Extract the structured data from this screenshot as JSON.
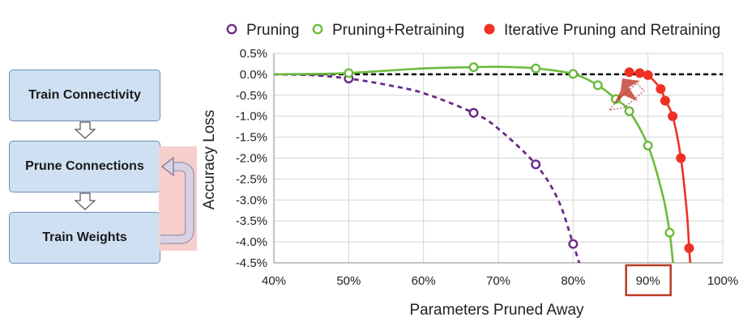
{
  "flowchart": {
    "steps": [
      "Train Connectivity",
      "Prune Connections",
      "Train Weights"
    ]
  },
  "chart_data": {
    "type": "line",
    "title": "",
    "xlabel": "Parameters Pruned Away",
    "ylabel": "Accuracy Loss",
    "xlim": [
      40,
      100
    ],
    "ylim": [
      -4.5,
      0.5
    ],
    "x_ticks": [
      "40%",
      "50%",
      "60%",
      "70%",
      "80%",
      "90%",
      "100%"
    ],
    "y_ticks": [
      "0.5%",
      "0.0%",
      "-0.5%",
      "-1.0%",
      "-1.5%",
      "-2.0%",
      "-2.5%",
      "-3.0%",
      "-3.5%",
      "-4.0%",
      "-4.5%"
    ],
    "highlighted_tick": "90%",
    "grid": true,
    "legend_position": "top",
    "series": [
      {
        "name": "Pruning",
        "color": "#6a2a86",
        "line_style": "dashed",
        "marker": "open-circle",
        "points": [
          [
            50,
            -0.1
          ],
          [
            66.7,
            -0.92
          ],
          [
            75,
            -2.15
          ],
          [
            80,
            -4.05
          ]
        ],
        "curve": [
          [
            40,
            0.0
          ],
          [
            45,
            -0.02
          ],
          [
            50,
            -0.1
          ],
          [
            55,
            -0.25
          ],
          [
            60,
            -0.45
          ],
          [
            66.7,
            -0.92
          ],
          [
            70,
            -1.3
          ],
          [
            75,
            -2.15
          ],
          [
            78,
            -3.0
          ],
          [
            80,
            -4.05
          ],
          [
            81,
            -4.6
          ]
        ]
      },
      {
        "name": "Pruning+Retraining",
        "color": "#6cbb3c",
        "line_style": "solid",
        "marker": "open-circle",
        "points": [
          [
            50,
            0.03
          ],
          [
            66.7,
            0.17
          ],
          [
            75,
            0.14
          ],
          [
            80,
            0.01
          ],
          [
            83.3,
            -0.26
          ],
          [
            85.7,
            -0.59
          ],
          [
            87.5,
            -0.88
          ],
          [
            90,
            -1.7
          ],
          [
            92.9,
            -3.78
          ]
        ],
        "curve": [
          [
            40,
            0.0
          ],
          [
            45,
            0.01
          ],
          [
            50,
            0.03
          ],
          [
            60,
            0.14
          ],
          [
            66.7,
            0.17
          ],
          [
            70,
            0.18
          ],
          [
            75,
            0.14
          ],
          [
            80,
            0.01
          ],
          [
            83.3,
            -0.26
          ],
          [
            85.7,
            -0.59
          ],
          [
            87.5,
            -0.88
          ],
          [
            90,
            -1.7
          ],
          [
            92,
            -2.9
          ],
          [
            92.9,
            -3.78
          ],
          [
            93.4,
            -4.6
          ]
        ]
      },
      {
        "name": "Iterative Pruning and Retraining",
        "color": "#ee3124",
        "line_style": "solid",
        "marker": "filled-circle",
        "points": [
          [
            87.5,
            0.05
          ],
          [
            88.9,
            0.03
          ],
          [
            90,
            -0.02
          ],
          [
            91.7,
            -0.35
          ],
          [
            92.3,
            -0.63
          ],
          [
            93.3,
            -1.0
          ],
          [
            94.4,
            -2.0
          ],
          [
            95.5,
            -4.15
          ]
        ],
        "curve": [
          [
            87.5,
            0.05
          ],
          [
            88.9,
            0.03
          ],
          [
            90,
            -0.02
          ],
          [
            91.7,
            -0.35
          ],
          [
            92.3,
            -0.63
          ],
          [
            93.3,
            -1.0
          ],
          [
            94.4,
            -2.0
          ],
          [
            95.2,
            -3.3
          ],
          [
            95.5,
            -4.15
          ],
          [
            95.7,
            -4.6
          ]
        ]
      }
    ],
    "reference_line": {
      "y": 0,
      "style": "dashed",
      "color": "#000000"
    }
  }
}
